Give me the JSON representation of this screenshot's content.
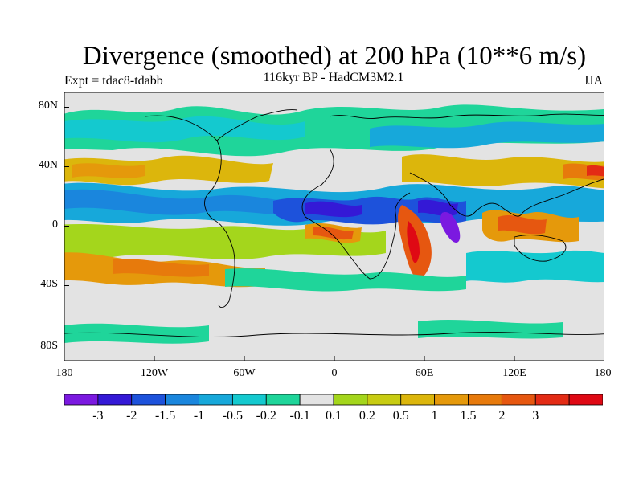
{
  "title": "Divergence (smoothed) at 200 hPa (10**6 m/s)",
  "subtitle": "116kyr BP - HadCM3M2.1",
  "left_label": "Expt = tdac8-tdabb",
  "right_label": "JJA",
  "lat_labels": [
    "80N",
    "40N",
    "0",
    "40S",
    "80S"
  ],
  "lon_labels": [
    "180",
    "120W",
    "60W",
    "0",
    "60E",
    "120E",
    "180"
  ],
  "colorbar": {
    "colors": [
      "#7b19e0",
      "#3419d6",
      "#1d52db",
      "#1a86dd",
      "#17a8da",
      "#14c9cf",
      "#1fd59a",
      "#e3e3e3",
      "#a4d61c",
      "#c8cc12",
      "#dcb60c",
      "#e5990b",
      "#e77a0c",
      "#e65710",
      "#e32b15",
      "#df0914"
    ],
    "labels": [
      "-3",
      "-2",
      "-1.5",
      "-1",
      "-0.5",
      "-0.2",
      "-0.1",
      "0.1",
      "0.2",
      "0.5",
      "1",
      "1.5",
      "2",
      "3"
    ]
  }
}
